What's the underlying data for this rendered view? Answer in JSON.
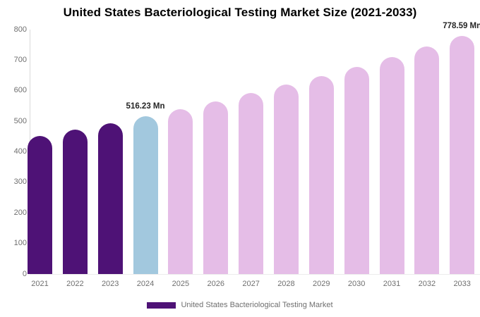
{
  "title": "United States Bacteriological Testing Market Size (2021-2033)",
  "legend": {
    "label": "United States Bacteriological Testing Market",
    "swatch_color": "#4e1276"
  },
  "colors": {
    "historical_bar": "#4e1276",
    "base_year_bar": "#a2c8de",
    "forecast_bar": "#e5bde7",
    "axis_label": "#6f6f6f",
    "data_label": "#252525",
    "title": "#000000"
  },
  "chart_data": {
    "type": "bar",
    "title": "United States Bacteriological Testing Market Size (2021-2033)",
    "unit": "Mn",
    "categories": [
      "2021",
      "2022",
      "2023",
      "2024",
      "2025",
      "2026",
      "2027",
      "2028",
      "2029",
      "2030",
      "2031",
      "2032",
      "2033"
    ],
    "values": [
      451.6,
      472.2,
      493.7,
      516.23,
      540.3,
      565.6,
      591.9,
      619.5,
      648.5,
      678.8,
      710.4,
      743.7,
      778.59
    ],
    "bar_colors": [
      "#4e1276",
      "#4e1276",
      "#4e1276",
      "#a2c8de",
      "#e5bde7",
      "#e5bde7",
      "#e5bde7",
      "#e5bde7",
      "#e5bde7",
      "#e5bde7",
      "#e5bde7",
      "#e5bde7",
      "#e5bde7"
    ],
    "point_labels": [
      null,
      null,
      null,
      "516.23 Mn",
      null,
      null,
      null,
      null,
      null,
      null,
      null,
      null,
      "778.59 Mn"
    ],
    "xlabel": "",
    "ylabel": "",
    "ylim": [
      0,
      800
    ],
    "yticks": [
      0,
      100,
      200,
      300,
      400,
      500,
      600,
      700,
      800
    ],
    "grid": false,
    "legend_entries": [
      "United States Bacteriological Testing Market"
    ],
    "legend_position": "bottom"
  }
}
